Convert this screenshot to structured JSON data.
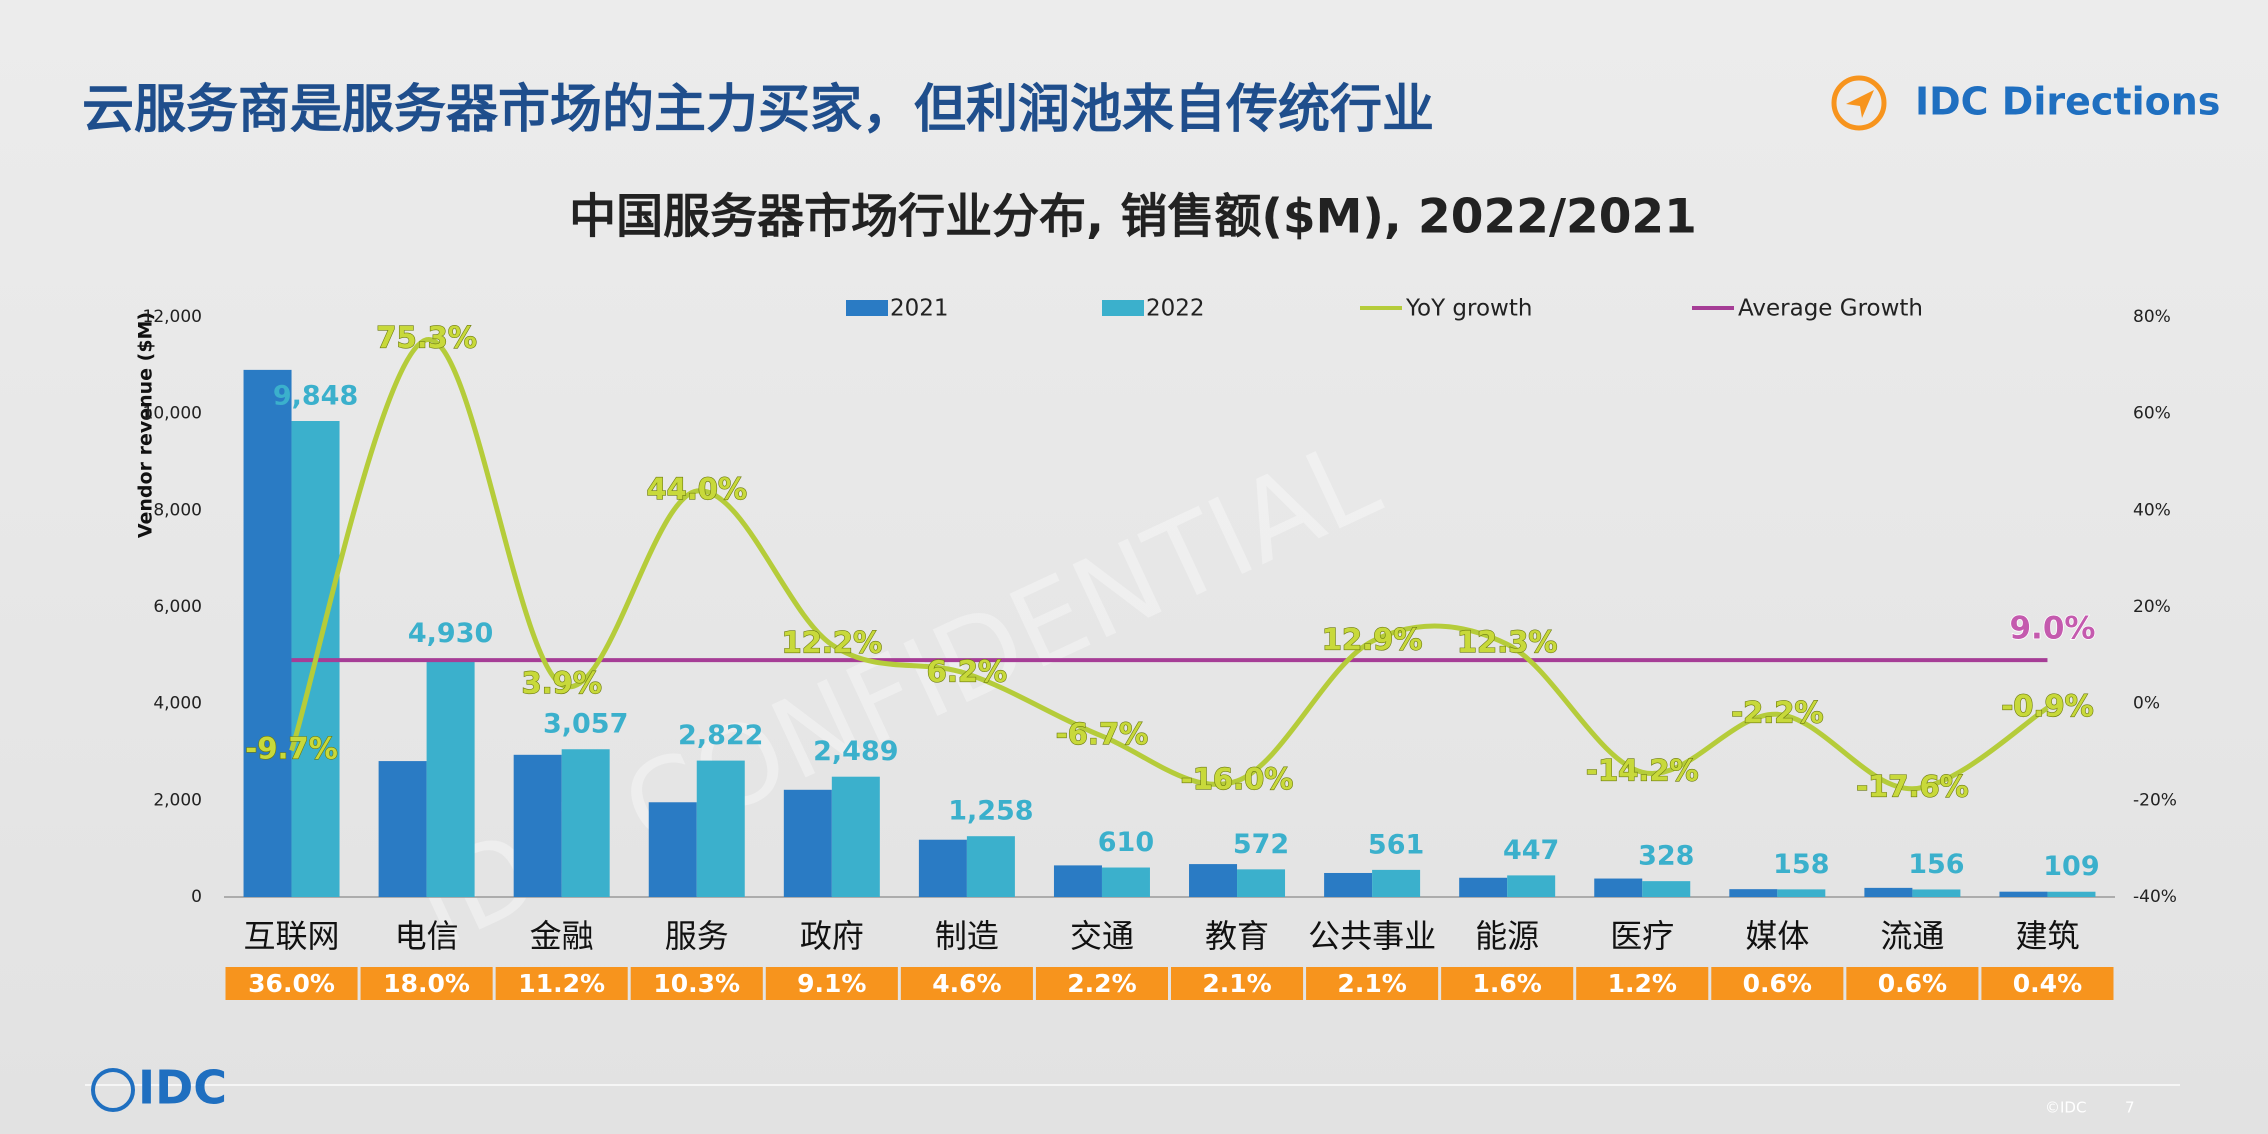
{
  "header": {
    "title": "云服务商是服务器市场的主力买家，但利润池来自传统行业",
    "brand": "IDC Directions"
  },
  "footer": {
    "logo": "IDC",
    "copyright": "©IDC",
    "page": "7"
  },
  "watermark": "IDC CONFIDENTIAL",
  "chart_data": {
    "type": "bar",
    "title": "中国服务器市场行业分布, 销售额($M), 2022/2021",
    "y_axis_label": "Vendor revenue ($M)",
    "categories": [
      "互联网",
      "电信",
      "金融",
      "服务",
      "政府",
      "制造",
      "交通",
      "教育",
      "公共事业",
      "能源",
      "医疗",
      "媒体",
      "流通",
      "建筑"
    ],
    "series": [
      {
        "name": "2021",
        "color": "#2a7bc4",
        "values": [
          10906,
          2812,
          2942,
          1960,
          2218,
          1185,
          654,
          681,
          497,
          398,
          382,
          162,
          189,
          110
        ]
      },
      {
        "name": "2022",
        "color": "#3bb0cc",
        "values": [
          9848,
          4930,
          3057,
          2822,
          2489,
          1258,
          610,
          572,
          561,
          447,
          328,
          158,
          156,
          109
        ],
        "value_labels": [
          "9,848",
          "4,930",
          "3,057",
          "2,822",
          "2,489",
          "1,258",
          "610",
          "572",
          "561",
          "447",
          "328",
          "158",
          "156",
          "109"
        ]
      },
      {
        "name": "YoY growth",
        "color": "#b5cc3a",
        "axis": "y2",
        "values": [
          -9.7,
          75.3,
          3.9,
          44.0,
          12.2,
          6.2,
          -6.7,
          -16.0,
          12.9,
          12.3,
          -14.2,
          -2.2,
          -17.6,
          -0.9
        ],
        "value_labels": [
          "-9.7%",
          "75.3%",
          "3.9%",
          "44.0%",
          "12.2%",
          "6.2%",
          "-6.7%",
          "-16.0%",
          "12.9%",
          "12.3%",
          "-14.2%",
          "-2.2%",
          "-17.6%",
          "-0.9%"
        ]
      },
      {
        "name": "Average Growth",
        "color": "#a63d96",
        "axis": "y2",
        "value": 9.0,
        "value_label": "9.0%"
      }
    ],
    "shares": {
      "color": "#f7941d",
      "values": [
        36.0,
        18.0,
        11.2,
        10.3,
        9.1,
        4.6,
        2.2,
        2.1,
        2.1,
        1.6,
        1.2,
        0.6,
        0.6,
        0.4
      ],
      "value_labels": [
        "36.0%",
        "18.0%",
        "11.2%",
        "10.3%",
        "9.1%",
        "4.6%",
        "2.2%",
        "2.1%",
        "2.1%",
        "1.6%",
        "1.2%",
        "0.6%",
        "0.6%",
        "0.4%"
      ]
    },
    "ylim": [
      0,
      12000
    ],
    "yticks": [
      0,
      {
        "value": 2000,
        "label": "2,000"
      },
      {
        "value": 4000,
        "label": "4,000"
      },
      {
        "value": 6000,
        "label": "6,000"
      },
      {
        "value": 8000,
        "label": "8,000"
      },
      {
        "value": 10000,
        "label": "10,000"
      },
      {
        "value": 12000,
        "label": "12,000"
      }
    ],
    "y2lim": [
      -40,
      80
    ],
    "y2ticks": [
      {
        "value": -40,
        "label": "-40%"
      },
      {
        "value": -20,
        "label": "-20%"
      },
      {
        "value": 0,
        "label": "0%"
      },
      {
        "value": 20,
        "label": "20%"
      },
      {
        "value": 40,
        "label": "40%"
      },
      {
        "value": 60,
        "label": "60%"
      },
      {
        "value": 80,
        "label": "80%"
      }
    ]
  }
}
